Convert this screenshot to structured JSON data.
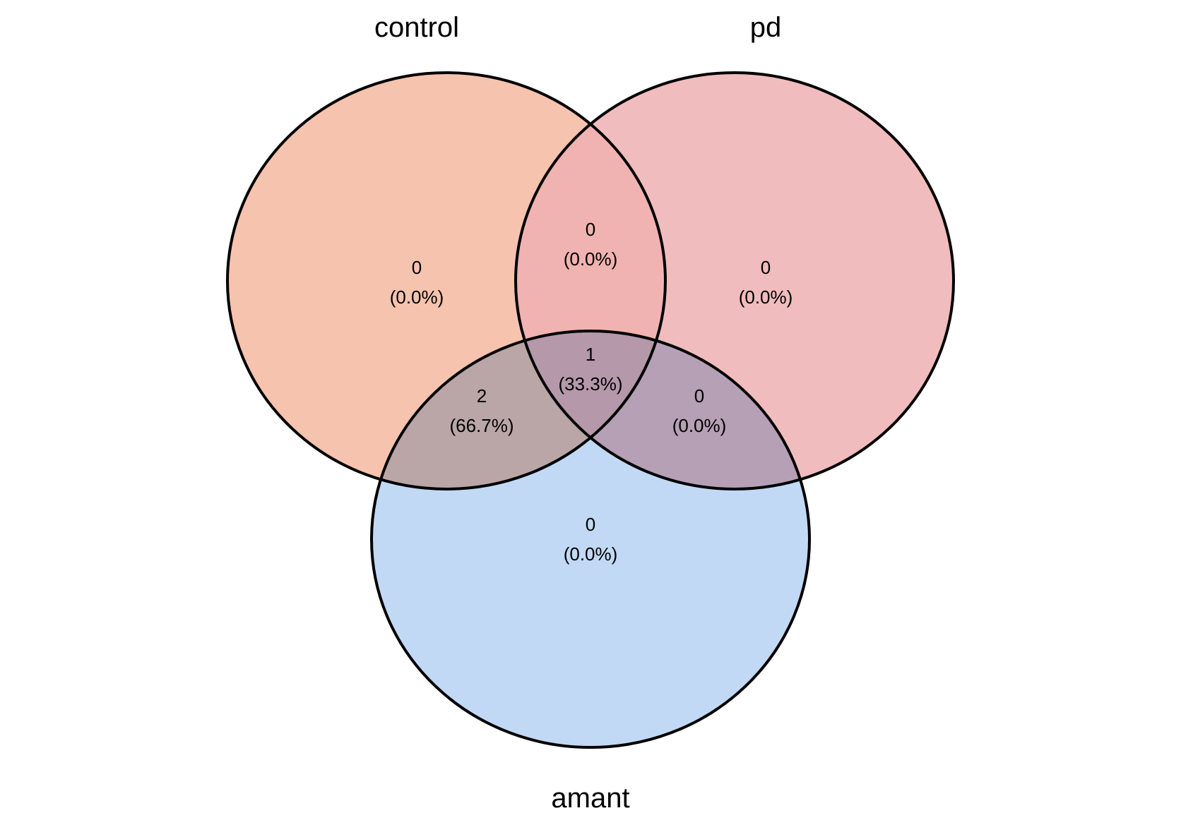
{
  "chart_data": {
    "type": "venn",
    "sets": [
      {
        "id": "control",
        "label": "control",
        "fill": "#f4b9a0"
      },
      {
        "id": "pd",
        "label": "pd",
        "fill": "#eeb0b2"
      },
      {
        "id": "amant",
        "label": "amant",
        "fill": "#b6d2f3"
      }
    ],
    "regions": [
      {
        "id": "control-only",
        "sets": [
          "control"
        ],
        "count": "0",
        "percent": "(0.0%)"
      },
      {
        "id": "pd-only",
        "sets": [
          "pd"
        ],
        "count": "0",
        "percent": "(0.0%)"
      },
      {
        "id": "amant-only",
        "sets": [
          "amant"
        ],
        "count": "0",
        "percent": "(0.0%)"
      },
      {
        "id": "control-pd",
        "sets": [
          "control",
          "pd"
        ],
        "count": "0",
        "percent": "(0.0%)"
      },
      {
        "id": "control-amant",
        "sets": [
          "control",
          "amant"
        ],
        "count": "2",
        "percent": "(66.7%)"
      },
      {
        "id": "pd-amant",
        "sets": [
          "pd",
          "amant"
        ],
        "count": "0",
        "percent": "(0.0%)"
      },
      {
        "id": "control-pd-amant",
        "sets": [
          "control",
          "pd",
          "amant"
        ],
        "count": "1",
        "percent": "(33.3%)"
      }
    ],
    "outline_color": "#000000"
  }
}
